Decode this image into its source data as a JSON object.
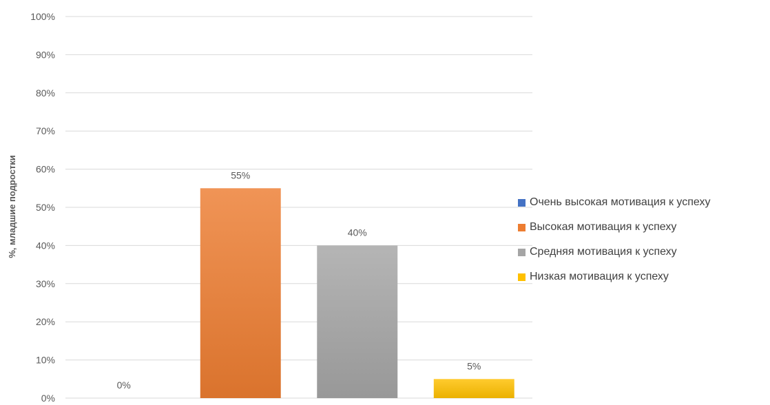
{
  "chart_data": {
    "type": "bar",
    "title": "",
    "xlabel": "",
    "ylabel": "%, младшие подростки",
    "ylim": [
      0,
      100
    ],
    "y_ticks": [
      "0%",
      "10%",
      "20%",
      "30%",
      "40%",
      "50%",
      "60%",
      "70%",
      "80%",
      "90%",
      "100%"
    ],
    "grid": true,
    "legend_position": "right",
    "series": [
      {
        "name": "Очень высокая мотивация к успеху",
        "value": 0,
        "label": "0%",
        "color": "#4472C4"
      },
      {
        "name": "Высокая мотивация к успеху",
        "value": 55,
        "label": "55%",
        "color": "#ED7D31"
      },
      {
        "name": "Средняя мотивация к успеху",
        "value": 40,
        "label": "40%",
        "color": "#A5A5A5"
      },
      {
        "name": "Низкая мотивация к успеху",
        "value": 5,
        "label": "5%",
        "color": "#FFC000"
      }
    ]
  }
}
